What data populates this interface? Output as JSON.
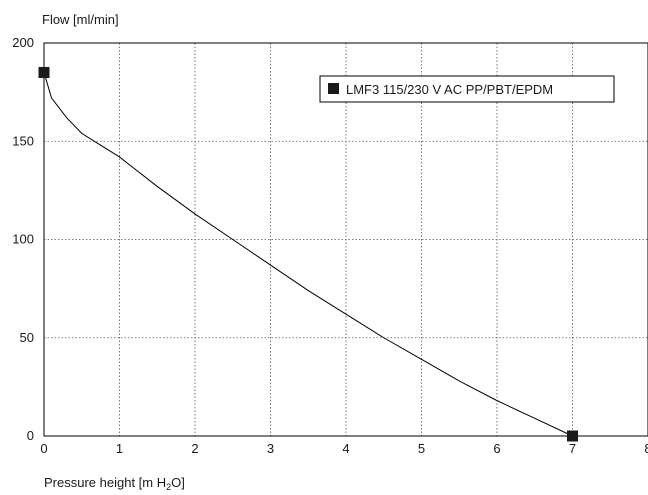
{
  "chart_data": {
    "type": "line",
    "ylabel": "Flow [ml/min]",
    "xlabel_parts": [
      "Pressure height [m H",
      "2",
      "O]"
    ],
    "xlim": [
      0,
      8
    ],
    "ylim": [
      0,
      200
    ],
    "x_ticks": [
      "0",
      "1",
      "2",
      "3",
      "4",
      "5",
      "6",
      "7",
      "8"
    ],
    "y_ticks": [
      "0",
      "50",
      "100",
      "150",
      "200"
    ],
    "grid": true,
    "legend_position": "top-right",
    "series": [
      {
        "name": "LMF3 115/230 V AC PP/PBT/EPDM",
        "color": "#000000",
        "marker": "square",
        "x": [
          0,
          0.1,
          0.3,
          0.5,
          0.75,
          1,
          1.5,
          2,
          2.5,
          3,
          3.5,
          4,
          4.5,
          5,
          5.5,
          6,
          6.5,
          7
        ],
        "y": [
          185,
          172,
          162,
          154,
          148,
          142,
          127,
          113,
          100,
          87,
          74,
          62,
          50,
          39,
          28,
          18,
          9,
          0
        ],
        "marker_points": [
          [
            0,
            185
          ],
          [
            7,
            0
          ]
        ]
      }
    ]
  }
}
